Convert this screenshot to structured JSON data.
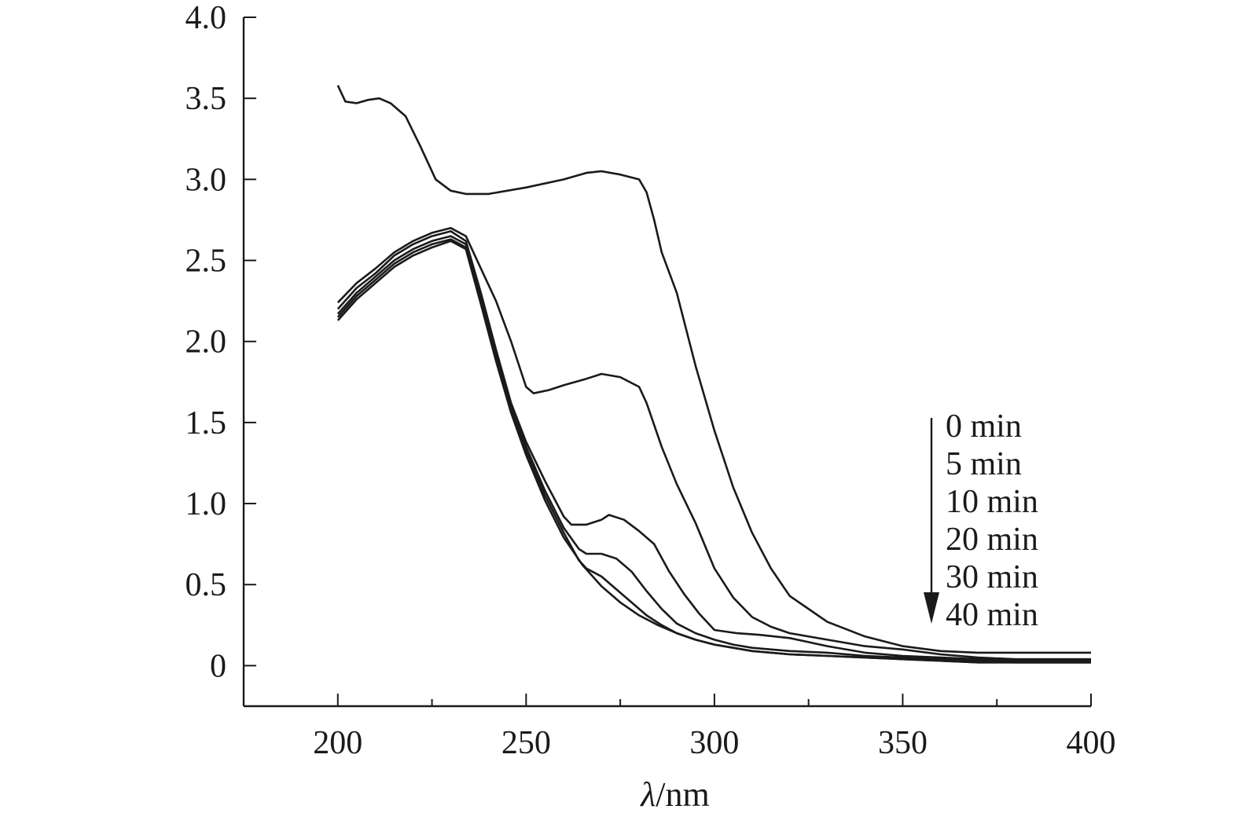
{
  "chart_data": {
    "type": "line",
    "xlabel_symbol": "λ",
    "xlabel_unit": "/nm",
    "ylabel": "",
    "xlim": [
      175,
      400
    ],
    "ylim": [
      -0.25,
      4.0
    ],
    "x_ticks": [
      200,
      250,
      300,
      350,
      400
    ],
    "x_minor_ticks": [
      225,
      275,
      325,
      375
    ],
    "y_ticks": [
      0,
      0.5,
      1.0,
      1.5,
      2.0,
      2.5,
      3.0,
      3.5,
      4.0
    ],
    "y_tick_labels": [
      "0",
      "0.5",
      "1.0",
      "1.5",
      "2.0",
      "2.5",
      "3.0",
      "3.5",
      "4.0"
    ],
    "legend": {
      "placement": "right",
      "entries": [
        "0 min",
        "5 min",
        "10 min",
        "20 min",
        "30 min",
        "40 min"
      ],
      "arrow": "down"
    },
    "series": [
      {
        "label": "0 min",
        "x": [
          200,
          202,
          205,
          208,
          211,
          214,
          218,
          222,
          226,
          230,
          234,
          240,
          250,
          260,
          266,
          270,
          275,
          280,
          282,
          284,
          286,
          290,
          295,
          300,
          305,
          310,
          315,
          320,
          330,
          340,
          350,
          360,
          370,
          380,
          390,
          400
        ],
        "y": [
          3.58,
          3.48,
          3.47,
          3.49,
          3.5,
          3.47,
          3.39,
          3.2,
          3.0,
          2.93,
          2.91,
          2.91,
          2.95,
          3.0,
          3.04,
          3.05,
          3.03,
          3.0,
          2.92,
          2.75,
          2.55,
          2.3,
          1.85,
          1.45,
          1.1,
          0.82,
          0.6,
          0.43,
          0.27,
          0.18,
          0.12,
          0.09,
          0.08,
          0.08,
          0.08,
          0.08
        ]
      },
      {
        "label": "5 min",
        "x": [
          200,
          205,
          210,
          215,
          220,
          225,
          230,
          234,
          238,
          242,
          246,
          250,
          252,
          256,
          260,
          266,
          270,
          275,
          280,
          282,
          286,
          290,
          295,
          300,
          305,
          310,
          315,
          320,
          330,
          340,
          350,
          360,
          370,
          380,
          390,
          400
        ],
        "y": [
          2.24,
          2.36,
          2.45,
          2.55,
          2.62,
          2.67,
          2.7,
          2.65,
          2.45,
          2.25,
          2.0,
          1.72,
          1.68,
          1.7,
          1.73,
          1.77,
          1.8,
          1.78,
          1.72,
          1.62,
          1.35,
          1.12,
          0.88,
          0.6,
          0.42,
          0.3,
          0.24,
          0.2,
          0.16,
          0.12,
          0.1,
          0.07,
          0.05,
          0.04,
          0.04,
          0.04
        ]
      },
      {
        "label": "10 min",
        "x": [
          200,
          205,
          210,
          215,
          220,
          225,
          230,
          234,
          238,
          242,
          246,
          250,
          255,
          260,
          262,
          266,
          270,
          272,
          276,
          280,
          284,
          288,
          292,
          296,
          300,
          306,
          312,
          320,
          330,
          340,
          350,
          360,
          370,
          380,
          390,
          400
        ],
        "y": [
          2.2,
          2.33,
          2.42,
          2.53,
          2.6,
          2.65,
          2.68,
          2.62,
          2.3,
          1.95,
          1.62,
          1.38,
          1.14,
          0.92,
          0.87,
          0.87,
          0.9,
          0.93,
          0.9,
          0.83,
          0.75,
          0.58,
          0.44,
          0.32,
          0.22,
          0.2,
          0.19,
          0.17,
          0.12,
          0.08,
          0.06,
          0.05,
          0.04,
          0.03,
          0.03,
          0.03
        ]
      },
      {
        "label": "20 min",
        "x": [
          200,
          205,
          210,
          215,
          220,
          225,
          230,
          234,
          238,
          242,
          246,
          250,
          255,
          260,
          264,
          266,
          270,
          274,
          278,
          282,
          286,
          290,
          295,
          300,
          305,
          310,
          320,
          330,
          340,
          350,
          360,
          370,
          380,
          390,
          400
        ],
        "y": [
          2.17,
          2.3,
          2.4,
          2.5,
          2.57,
          2.62,
          2.65,
          2.6,
          2.27,
          1.92,
          1.6,
          1.35,
          1.08,
          0.85,
          0.72,
          0.69,
          0.69,
          0.66,
          0.58,
          0.46,
          0.35,
          0.26,
          0.2,
          0.16,
          0.13,
          0.11,
          0.09,
          0.08,
          0.06,
          0.05,
          0.04,
          0.03,
          0.02,
          0.02,
          0.02
        ]
      },
      {
        "label": "30 min",
        "x": [
          200,
          205,
          210,
          215,
          220,
          225,
          230,
          234,
          238,
          242,
          246,
          250,
          255,
          260,
          264,
          266,
          270,
          274,
          278,
          282,
          286,
          290,
          295,
          300,
          305,
          310,
          320,
          330,
          340,
          350,
          360,
          370,
          380,
          390,
          400
        ],
        "y": [
          2.15,
          2.28,
          2.38,
          2.48,
          2.55,
          2.6,
          2.63,
          2.58,
          2.25,
          1.9,
          1.58,
          1.33,
          1.05,
          0.82,
          0.65,
          0.6,
          0.55,
          0.47,
          0.39,
          0.31,
          0.25,
          0.2,
          0.16,
          0.13,
          0.11,
          0.09,
          0.07,
          0.06,
          0.05,
          0.04,
          0.03,
          0.02,
          0.02,
          0.02,
          0.02
        ]
      },
      {
        "label": "40 min",
        "x": [
          200,
          205,
          210,
          215,
          220,
          225,
          230,
          234,
          238,
          242,
          246,
          250,
          255,
          260,
          265,
          270,
          275,
          280,
          285,
          290,
          295,
          300,
          305,
          310,
          320,
          330,
          340,
          350,
          360,
          370,
          380,
          390,
          400
        ],
        "y": [
          2.13,
          2.26,
          2.36,
          2.46,
          2.53,
          2.58,
          2.62,
          2.57,
          2.23,
          1.88,
          1.56,
          1.3,
          1.02,
          0.79,
          0.62,
          0.49,
          0.39,
          0.31,
          0.25,
          0.2,
          0.16,
          0.13,
          0.11,
          0.09,
          0.07,
          0.06,
          0.05,
          0.04,
          0.03,
          0.02,
          0.02,
          0.02,
          0.02
        ]
      }
    ],
    "colors": {
      "line": "#1a1a1a",
      "background": "#ffffff"
    }
  }
}
